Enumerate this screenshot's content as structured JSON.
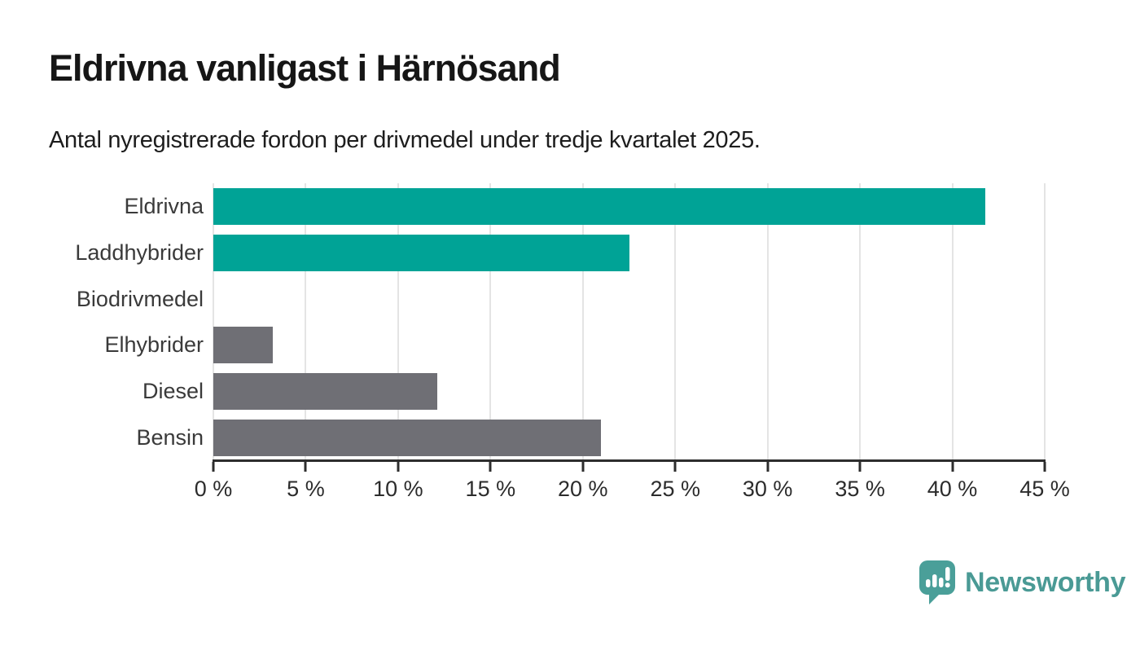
{
  "chart_data": {
    "type": "bar",
    "orientation": "horizontal",
    "title": "Eldrivna vanligast i Härnösand",
    "subtitle": "Antal nyregistrerade fordon per drivmedel under tredje kvartalet 2025.",
    "categories": [
      "Eldrivna",
      "Laddhybrider",
      "Biodrivmedel",
      "Elhybrider",
      "Diesel",
      "Bensin"
    ],
    "values": [
      41.8,
      22.5,
      0,
      3.2,
      12.1,
      21
    ],
    "unit": "%",
    "bar_colors": [
      "#00a396",
      "#00a396",
      "#00a396",
      "#6f6f75",
      "#6f6f75",
      "#6f6f75"
    ],
    "xlim": [
      0,
      45
    ],
    "x_tick_values": [
      0,
      5,
      10,
      15,
      20,
      25,
      30,
      35,
      40,
      45
    ],
    "x_tick_labels": [
      "0 %",
      "5 %",
      "10 %",
      "15 %",
      "20 %",
      "25 %",
      "30 %",
      "35 %",
      "40 %",
      "45 %"
    ],
    "xlabel": "",
    "ylabel": "",
    "grid": true,
    "legend": false
  },
  "footer": {
    "brand": "Newsworthy",
    "icon": "newsworthy-bar-chart-speech-bubble-icon"
  },
  "colors": {
    "accent_teal": "#00a396",
    "neutral_gray": "#6f6f75",
    "gridline": "#e4e4e4",
    "axis": "#2d2d2d",
    "brand_teal": "#4a9a95",
    "background": "#ffffff"
  }
}
